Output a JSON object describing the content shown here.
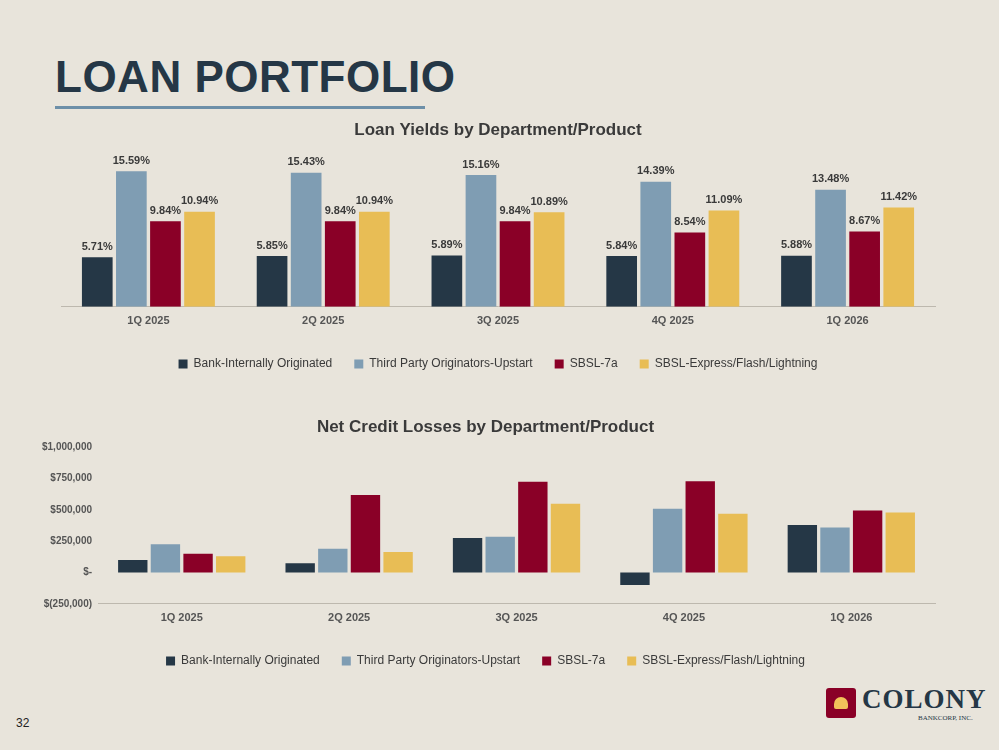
{
  "title": "LOAN PORTFOLIO",
  "page_number": 32,
  "logo": {
    "name": "COLONY",
    "subtitle": "BANKCORP, INC."
  },
  "chart_data": [
    {
      "type": "bar",
      "title": "Loan Yields by Department/Product",
      "categories": [
        "1Q 2025",
        "2Q 2025",
        "3Q 2025",
        "4Q 2025",
        "1Q 2026"
      ],
      "series": [
        {
          "name": "Bank-Internally Originated",
          "color": "#253746",
          "values": [
            5.71,
            5.85,
            5.89,
            5.84,
            5.88
          ],
          "value_labels": [
            "5.71%",
            "5.85%",
            "5.89%",
            "5.84%",
            "5.88%"
          ]
        },
        {
          "name": "Third Party Originators-Upstart",
          "color": "#7f9db3",
          "values": [
            15.59,
            15.43,
            15.16,
            14.39,
            13.48
          ],
          "value_labels": [
            "15.59%",
            "15.43%",
            "15.16%",
            "14.39%",
            "13.48%"
          ]
        },
        {
          "name": "SBSL-7a",
          "color": "#8a0027",
          "values": [
            9.84,
            9.84,
            9.84,
            8.54,
            8.67
          ],
          "value_labels": [
            "9.84%",
            "9.84%",
            "9.84%",
            "8.54%",
            "8.67%"
          ]
        },
        {
          "name": "SBSL-Express/Flash/Lightning",
          "color": "#e8bd55",
          "values": [
            10.94,
            10.94,
            10.89,
            11.09,
            11.42
          ],
          "value_labels": [
            "10.94%",
            "10.94%",
            "10.89%",
            "11.09%",
            "11.42%"
          ]
        }
      ],
      "ylim": [
        0,
        18
      ],
      "yticks": [],
      "grid": false,
      "legend": "bottom",
      "data_labels": true,
      "tick_labels": "x"
    },
    {
      "type": "bar",
      "title": "Net Credit Losses by Department/Product",
      "categories": [
        "1Q 2025",
        "2Q 2025",
        "3Q 2025",
        "4Q 2025",
        "1Q 2026"
      ],
      "series": [
        {
          "name": "Bank-Internally Originated",
          "color": "#253746",
          "values": [
            100000,
            75000,
            275000,
            -100000,
            380000
          ]
        },
        {
          "name": "Third Party Originators-Upstart",
          "color": "#7f9db3",
          "values": [
            225000,
            190000,
            285000,
            510000,
            360000
          ]
        },
        {
          "name": "SBSL-7a",
          "color": "#8a0027",
          "values": [
            150000,
            620000,
            725000,
            730000,
            495000
          ]
        },
        {
          "name": "SBSL-Express/Flash/Lightning",
          "color": "#e8bd55",
          "values": [
            130000,
            165000,
            550000,
            470000,
            480000
          ]
        }
      ],
      "ylim": [
        -250000,
        1000000
      ],
      "yticks": [
        {
          "value": -250000,
          "label": "$(250,000)"
        },
        {
          "value": 0,
          "label": "$-"
        },
        {
          "value": 250000,
          "label": "$250,000"
        },
        {
          "value": 500000,
          "label": "$500,000"
        },
        {
          "value": 750000,
          "label": "$750,000"
        },
        {
          "value": 1000000,
          "label": "$1,000,000"
        }
      ],
      "grid": false,
      "legend": "bottom",
      "data_labels": false
    }
  ]
}
